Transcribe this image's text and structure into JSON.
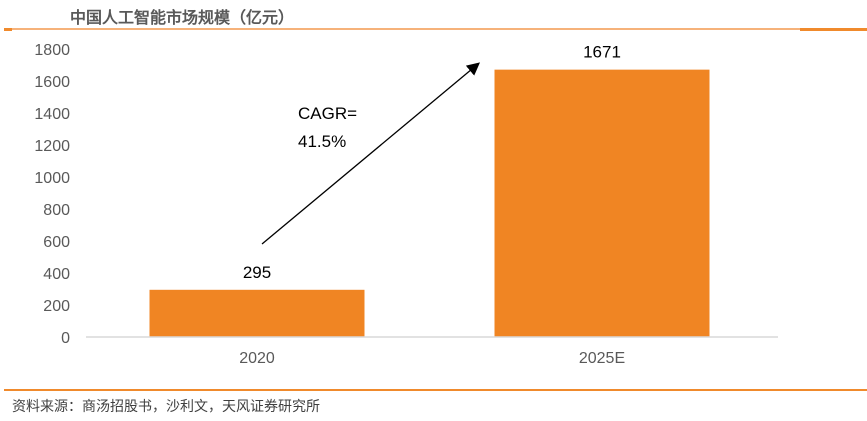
{
  "title": "中国人工智能市场规模（亿元）",
  "source": "资料来源：商汤招股书，沙利文，天风证券研究所",
  "chart_data": {
    "type": "bar",
    "title": "中国人工智能市场规模（亿元）",
    "categories": [
      "2020",
      "2025E"
    ],
    "values": [
      295,
      1671
    ],
    "data_labels": [
      "295",
      "1671"
    ],
    "ylim": [
      0,
      1800
    ],
    "yticks": [
      "0",
      "200",
      "400",
      "600",
      "800",
      "1000",
      "1200",
      "1400",
      "1600",
      "1800"
    ],
    "grid": false,
    "bar_color": "#f08523",
    "annotation": {
      "line1": "CAGR=",
      "line2": "41.5%"
    }
  }
}
